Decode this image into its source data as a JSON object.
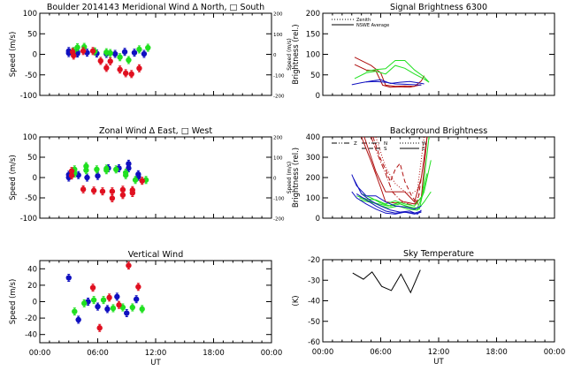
{
  "colors": {
    "red": "#e01020",
    "green": "#20e020",
    "blue": "#1010c0",
    "darkred": "#b01010",
    "black": "#000000"
  },
  "x_axis": {
    "label": "UT",
    "ticks": [
      "00:00",
      "06:00",
      "12:00",
      "18:00",
      "00:00"
    ]
  },
  "chart_data": [
    {
      "id": "meridional",
      "type": "scatter",
      "title": "Boulder   2014143     Meridional Wind   Δ North, □ South",
      "ylabel": "Speed (m/s)",
      "ylim": [
        -100,
        100
      ],
      "yticks": [
        "100",
        "50",
        "0",
        "-50",
        "-100"
      ],
      "right_ylabel": "Speed (m/s)",
      "right_yticks": [
        "200",
        "100",
        "0",
        "-100",
        "-200"
      ],
      "xlim_hours": [
        0,
        24
      ],
      "series": [
        {
          "name": "blue",
          "color": "blue",
          "points": [
            [
              3.0,
              3
            ],
            [
              3.0,
              8
            ],
            [
              3.9,
              5
            ],
            [
              3.9,
              2
            ],
            [
              4.9,
              4
            ],
            [
              5.9,
              2
            ],
            [
              6.9,
              1
            ],
            [
              7.8,
              1
            ],
            [
              8.8,
              6
            ],
            [
              9.8,
              4
            ],
            [
              10.8,
              1
            ]
          ]
        },
        {
          "name": "green",
          "color": "green",
          "points": [
            [
              3.5,
              8
            ],
            [
              3.9,
              17
            ],
            [
              4.6,
              18
            ],
            [
              5.7,
              7
            ],
            [
              6.9,
              5
            ],
            [
              7.3,
              3
            ],
            [
              8.3,
              -7
            ],
            [
              9.2,
              -14
            ],
            [
              10.3,
              12
            ],
            [
              11.2,
              16
            ]
          ]
        },
        {
          "name": "red",
          "color": "red",
          "points": [
            [
              3.4,
              6
            ],
            [
              3.5,
              -3
            ],
            [
              4.5,
              8
            ],
            [
              5.5,
              8
            ],
            [
              6.3,
              -16
            ],
            [
              6.9,
              -33
            ],
            [
              7.3,
              -17
            ],
            [
              8.3,
              -37
            ],
            [
              8.9,
              -46
            ],
            [
              9.5,
              -48
            ],
            [
              10.3,
              -34
            ]
          ]
        }
      ]
    },
    {
      "id": "signal",
      "type": "line",
      "title": "Signal Brightness      6300",
      "ylabel": "Brightness (rel.)",
      "ylim": [
        0,
        200
      ],
      "yticks": [
        "200",
        "150",
        "100",
        "50",
        "0"
      ],
      "xlim_hours": [
        0,
        24
      ],
      "legend": [
        {
          "label": "Zenith",
          "style": "dotted"
        },
        {
          "label": "NSWE Average",
          "style": "solid"
        }
      ],
      "series": [
        {
          "name": "red-1",
          "color": "darkred",
          "x": [
            3.3,
            5.0,
            6.0,
            6.5,
            7.5,
            8.5,
            9.5,
            10.2,
            10.5
          ],
          "y": [
            93,
            73,
            55,
            25,
            22,
            23,
            22,
            35,
            48
          ]
        },
        {
          "name": "red-2",
          "color": "darkred",
          "x": [
            3.3,
            4.5,
            5.5,
            6.2,
            7.0,
            8.0,
            9.0,
            10.2
          ],
          "y": [
            75,
            62,
            60,
            25,
            20,
            21,
            20,
            26
          ]
        },
        {
          "name": "green-1",
          "color": "green",
          "x": [
            3.3,
            4.5,
            5.5,
            6.5,
            7.5,
            8.5,
            9.5,
            10.5,
            11.0
          ],
          "y": [
            41,
            55,
            59,
            52,
            73,
            66,
            52,
            40,
            32
          ]
        },
        {
          "name": "green-2",
          "color": "green",
          "x": [
            4.5,
            5.5,
            6.5,
            7.5,
            8.5,
            9.5,
            10.5,
            11.0
          ],
          "y": [
            59,
            63,
            65,
            85,
            85,
            62,
            45,
            32
          ]
        },
        {
          "name": "blue-1",
          "color": "blue",
          "x": [
            3.0,
            4.0,
            5.0,
            6.0,
            7.0,
            8.0,
            9.0,
            10.0,
            10.5
          ],
          "y": [
            26,
            31,
            35,
            38,
            29,
            32,
            34,
            30,
            28
          ]
        },
        {
          "name": "blue-2",
          "color": "blue",
          "x": [
            4.5,
            5.5,
            6.5,
            7.5,
            8.5,
            9.5,
            10.2
          ],
          "y": [
            33,
            34,
            32,
            28,
            27,
            26,
            25
          ]
        }
      ]
    },
    {
      "id": "zonal",
      "type": "scatter",
      "title": "Zonal Wind      Δ East, □ West",
      "ylabel": "Speed (m/s)",
      "ylim": [
        -100,
        100
      ],
      "yticks": [
        "100",
        "50",
        "0",
        "-50",
        "-100"
      ],
      "right_ylabel": "Speed (m/s)",
      "right_yticks": [
        "200",
        "100",
        "0",
        "-100",
        "-200"
      ],
      "xlim_hours": [
        0,
        24
      ],
      "series": [
        {
          "name": "blue",
          "color": "blue",
          "points": [
            [
              3.0,
              0
            ],
            [
              3.0,
              7
            ],
            [
              4.0,
              6
            ],
            [
              4.9,
              0
            ],
            [
              6.0,
              4
            ],
            [
              7.1,
              23
            ],
            [
              8.2,
              23
            ],
            [
              9.2,
              34
            ],
            [
              9.2,
              23
            ],
            [
              10.2,
              8
            ],
            [
              10.2,
              2
            ]
          ]
        },
        {
          "name": "green",
          "color": "green",
          "points": [
            [
              3.6,
              20
            ],
            [
              3.6,
              10
            ],
            [
              4.8,
              28
            ],
            [
              4.8,
              18
            ],
            [
              5.9,
              20
            ],
            [
              6.9,
              22
            ],
            [
              6.9,
              18
            ],
            [
              7.9,
              20
            ],
            [
              8.9,
              12
            ],
            [
              8.9,
              6
            ],
            [
              9.9,
              -6
            ],
            [
              11.0,
              -6
            ]
          ]
        },
        {
          "name": "red",
          "color": "red",
          "points": [
            [
              3.3,
              16
            ],
            [
              3.3,
              5
            ],
            [
              4.5,
              -29
            ],
            [
              5.6,
              -32
            ],
            [
              6.5,
              -34
            ],
            [
              7.5,
              -34
            ],
            [
              7.5,
              -51
            ],
            [
              8.6,
              -30
            ],
            [
              8.6,
              -43
            ],
            [
              9.6,
              -31
            ],
            [
              9.6,
              -38
            ],
            [
              10.6,
              -8
            ]
          ]
        }
      ]
    },
    {
      "id": "background",
      "type": "line",
      "title": "Background Brightness",
      "ylabel": "Brightness (rel.)",
      "ylim": [
        0,
        400
      ],
      "yticks": [
        "400",
        "300",
        "200",
        "100",
        "0"
      ],
      "xlim_hours": [
        0,
        24
      ],
      "legend": [
        {
          "label": "Z",
          "style": "dash-dot-dot"
        },
        {
          "label": "N",
          "style": "dash-dot"
        },
        {
          "label": "S",
          "style": "dashed"
        },
        {
          "label": "W",
          "style": "dotted"
        },
        {
          "label": "E",
          "style": "solid"
        }
      ],
      "series": [
        {
          "name": "red-N",
          "color": "darkred",
          "style": "dash-dot",
          "x": [
            5.0,
            5.8,
            6.5,
            7.2,
            8.0,
            8.8,
            9.5,
            10.0
          ],
          "y": [
            400,
            300,
            220,
            130,
            90,
            70,
            60,
            120
          ]
        },
        {
          "name": "red-S",
          "color": "darkred",
          "style": "dashed",
          "x": [
            5.2,
            6.0,
            6.5,
            7.0,
            7.5,
            8.0,
            8.5,
            9.2,
            9.8,
            10.2
          ],
          "y": [
            400,
            290,
            240,
            180,
            240,
            270,
            180,
            110,
            70,
            200
          ]
        },
        {
          "name": "red-E",
          "color": "darkred",
          "style": "solid",
          "x": [
            4.0,
            5.0,
            6.0,
            6.5,
            7.5,
            8.5,
            9.5,
            10.2,
            10.8
          ],
          "y": [
            400,
            280,
            150,
            80,
            75,
            80,
            70,
            100,
            400
          ]
        },
        {
          "name": "red-W",
          "color": "darkred",
          "style": "dotted",
          "x": [
            5.5,
            6.5,
            7.5,
            8.5,
            9.2,
            9.8,
            10.5
          ],
          "y": [
            400,
            250,
            170,
            130,
            120,
            140,
            400
          ]
        },
        {
          "name": "red-Z",
          "color": "darkred",
          "style": "solid",
          "x": [
            4.3,
            5.5,
            6.5,
            7.5,
            8.5,
            9.5,
            10.2,
            10.8
          ],
          "y": [
            400,
            230,
            130,
            130,
            130,
            80,
            200,
            400
          ]
        },
        {
          "name": "green-1",
          "color": "green",
          "x": [
            3.5,
            4.5,
            5.5,
            6.5,
            7.5,
            8.5,
            9.5,
            10.3,
            11.0
          ],
          "y": [
            110,
            95,
            90,
            70,
            85,
            70,
            60,
            110,
            400
          ]
        },
        {
          "name": "green-2",
          "color": "green",
          "x": [
            3.8,
            4.8,
            5.8,
            6.8,
            7.8,
            8.8,
            9.8,
            10.5,
            11.2
          ],
          "y": [
            90,
            80,
            70,
            60,
            75,
            55,
            50,
            130,
            285
          ]
        },
        {
          "name": "green-3",
          "color": "green",
          "x": [
            3.8,
            4.8,
            5.8,
            6.8,
            7.8,
            8.8,
            9.8,
            10.5,
            11.2
          ],
          "y": [
            100,
            85,
            65,
            50,
            60,
            45,
            40,
            80,
            130
          ]
        },
        {
          "name": "green-4",
          "color": "green",
          "x": [
            4.0,
            5.0,
            6.0,
            7.0,
            8.0,
            9.0,
            10.0,
            10.8
          ],
          "y": [
            120,
            100,
            75,
            60,
            70,
            55,
            45,
            220
          ]
        },
        {
          "name": "blue-1",
          "color": "blue",
          "x": [
            3.0,
            3.5,
            4.5,
            5.5,
            6.5,
            7.5,
            8.5,
            9.5,
            10.2
          ],
          "y": [
            215,
            160,
            110,
            110,
            80,
            60,
            55,
            45,
            60
          ]
        },
        {
          "name": "blue-2",
          "color": "blue",
          "x": [
            3.0,
            3.5,
            4.5,
            5.5,
            6.5,
            7.5,
            8.5,
            9.5,
            10.2
          ],
          "y": [
            130,
            100,
            70,
            45,
            25,
            20,
            30,
            25,
            35
          ]
        },
        {
          "name": "blue-3",
          "color": "blue",
          "x": [
            3.2,
            4.0,
            5.0,
            6.0,
            7.0,
            8.0,
            9.0,
            9.8,
            10.2
          ],
          "y": [
            195,
            120,
            85,
            60,
            40,
            30,
            35,
            20,
            40
          ]
        },
        {
          "name": "blue-4",
          "color": "blue",
          "x": [
            3.5,
            4.5,
            5.5,
            6.5,
            7.5,
            8.5,
            9.5,
            10.2
          ],
          "y": [
            120,
            90,
            60,
            35,
            25,
            30,
            20,
            30
          ]
        }
      ]
    },
    {
      "id": "vertical",
      "type": "scatter",
      "title": "Vertical Wind",
      "ylabel": "Speed (m/s)",
      "xlabel": "UT",
      "ylim": [
        -50,
        50
      ],
      "yticks": [
        "40",
        "20",
        "0",
        "-20",
        "-40"
      ],
      "xlim_hours": [
        0,
        24
      ],
      "series": [
        {
          "name": "blue",
          "color": "blue",
          "points": [
            [
              3.0,
              29
            ],
            [
              4.0,
              -22
            ],
            [
              5.0,
              0
            ],
            [
              6.0,
              -6
            ],
            [
              7.0,
              -9
            ],
            [
              8.0,
              6
            ],
            [
              9.0,
              -14
            ],
            [
              10.0,
              3
            ]
          ]
        },
        {
          "name": "green",
          "color": "green",
          "points": [
            [
              3.6,
              -12
            ],
            [
              4.6,
              -2
            ],
            [
              5.6,
              2
            ],
            [
              6.6,
              2
            ],
            [
              7.6,
              -8
            ],
            [
              8.6,
              -7
            ],
            [
              9.6,
              -7
            ],
            [
              10.6,
              -9
            ]
          ]
        },
        {
          "name": "red",
          "color": "red",
          "points": [
            [
              5.5,
              17
            ],
            [
              6.2,
              -32
            ],
            [
              7.2,
              5
            ],
            [
              8.2,
              -4
            ],
            [
              9.2,
              44
            ],
            [
              10.2,
              18
            ]
          ]
        }
      ]
    },
    {
      "id": "sky",
      "type": "line",
      "title": "Sky Temperature",
      "ylabel": "(K)",
      "xlabel": "UT",
      "ylim": [
        -60,
        -20
      ],
      "yticks": [
        "-20",
        "-30",
        "-40",
        "-50",
        "-60"
      ],
      "xlim_hours": [
        0,
        24
      ],
      "series": [
        {
          "name": "sky-temp",
          "color": "black",
          "x": [
            3.1,
            4.2,
            5.1,
            6.1,
            7.1,
            8.1,
            9.1,
            10.1
          ],
          "y": [
            -26.5,
            -29.5,
            -26,
            -33,
            -35,
            -27,
            -36,
            -25
          ]
        }
      ]
    }
  ]
}
